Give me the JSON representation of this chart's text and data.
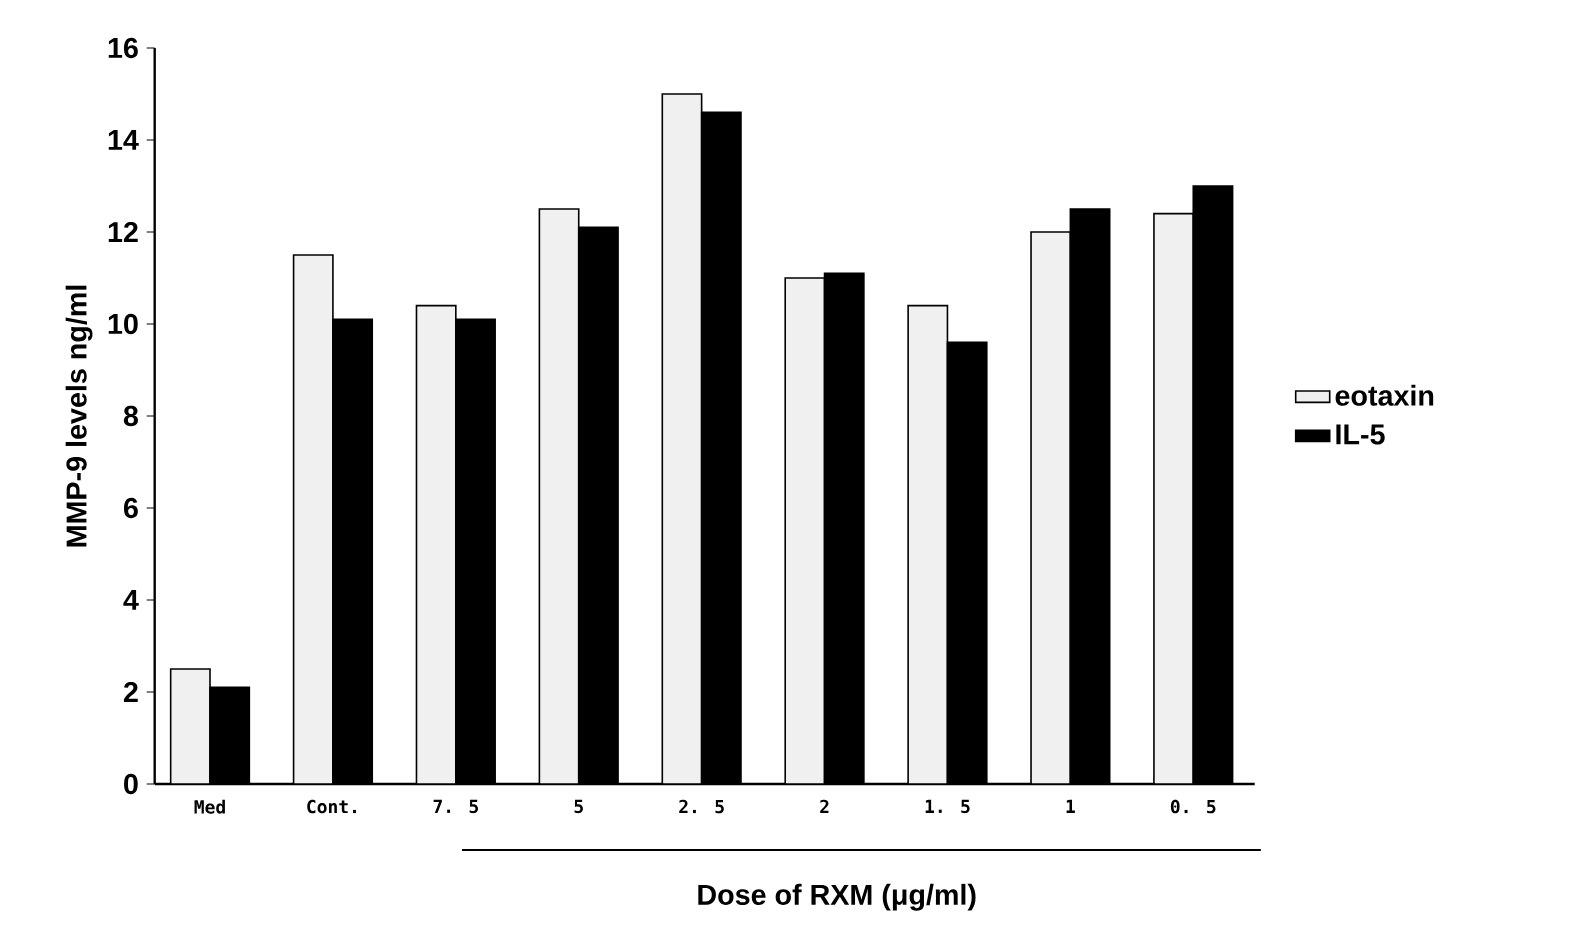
{
  "chart_data": {
    "type": "bar",
    "xlabel": "Dose of RXM (μg/ml)",
    "ylabel": "MMP-9 levels ng/ml",
    "categories": [
      "Med",
      "Cont.",
      "7. 5",
      "5",
      "2. 5",
      "2",
      "1. 5",
      "1",
      "0. 5"
    ],
    "series": [
      {
        "name": "eotaxin",
        "color": "#f0f0f0",
        "values": [
          2.5,
          11.5,
          10.4,
          12.5,
          15.0,
          11.0,
          10.4,
          12.0,
          12.4
        ]
      },
      {
        "name": "IL-5",
        "color": "#000000",
        "values": [
          2.1,
          10.1,
          10.1,
          12.1,
          14.6,
          11.1,
          9.6,
          12.5,
          13.0
        ]
      }
    ],
    "ylim": [
      0,
      16
    ],
    "yticks": [
      0,
      2,
      4,
      6,
      8,
      10,
      12,
      14,
      16
    ],
    "grid": false,
    "legend": "right"
  }
}
